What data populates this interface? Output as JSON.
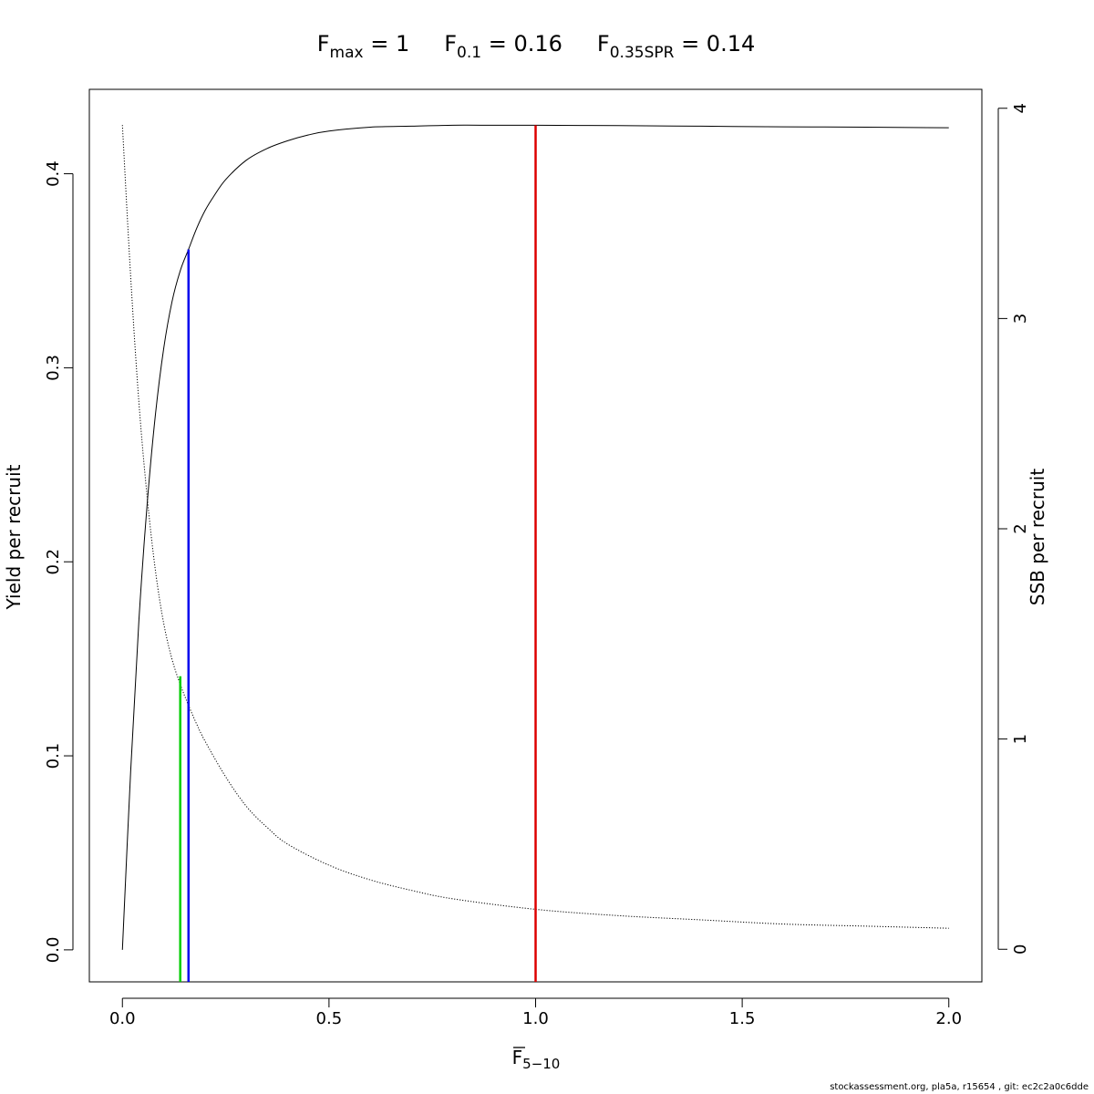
{
  "chart_data": {
    "type": "line",
    "title": "",
    "reference_points": [
      {
        "name_main": "F",
        "name_sub": "max",
        "equals": "=",
        "value": "1",
        "F": 1.0,
        "yield_top": 0.425,
        "color": "#dd0000"
      },
      {
        "name_main": "F",
        "name_sub": "0.1",
        "equals": "=",
        "value": "0.16",
        "F": 0.16,
        "yield_top": 0.361,
        "color": "#0000ee"
      },
      {
        "name_main": "F",
        "name_sub": "0.35SPR",
        "equals": "=",
        "value": "0.14",
        "F": 0.14,
        "yield_top": 0.141,
        "color": "#00cc00"
      }
    ],
    "xlabel": {
      "main": "F",
      "sub": "5−10"
    },
    "ylabel_left": "Yield per recruit",
    "ylabel_right": "SSB per recruit",
    "xlim": [
      -0.08,
      2.08
    ],
    "ylim_left": [
      -0.0165,
      0.4435
    ],
    "ylim_right": [
      -0.155,
      4.09
    ],
    "x_ticks": [
      "0.0",
      "0.5",
      "1.0",
      "1.5",
      "2.0"
    ],
    "y_left_ticks": [
      "0.0",
      "0.1",
      "0.2",
      "0.3",
      "0.4"
    ],
    "y_right_ticks": [
      "0",
      "1",
      "2",
      "3",
      "4"
    ],
    "series": [
      {
        "axis": "left",
        "line": "solid",
        "x": [
          0,
          0.02,
          0.04,
          0.06,
          0.08,
          0.1,
          0.12,
          0.14,
          0.16,
          0.18,
          0.2,
          0.22,
          0.25,
          0.3,
          0.35,
          0.4,
          0.45,
          0.5,
          0.6,
          0.7,
          0.8,
          0.9,
          1.0,
          1.2,
          1.4,
          1.6,
          1.8,
          2.0
        ],
        "y": [
          0,
          0.092,
          0.17,
          0.23,
          0.276,
          0.31,
          0.334,
          0.35,
          0.361,
          0.372,
          0.381,
          0.388,
          0.397,
          0.407,
          0.413,
          0.417,
          0.42,
          0.422,
          0.424,
          0.4245,
          0.425,
          0.425,
          0.425,
          0.4248,
          0.4245,
          0.4242,
          0.424,
          0.4237
        ]
      },
      {
        "axis": "right",
        "line": "dotted",
        "x": [
          0,
          0.02,
          0.04,
          0.06,
          0.08,
          0.1,
          0.12,
          0.14,
          0.16,
          0.18,
          0.2,
          0.25,
          0.3,
          0.35,
          0.4,
          0.5,
          0.6,
          0.7,
          0.8,
          1.0,
          1.2,
          1.4,
          1.6,
          1.8,
          2.0
        ],
        "y": [
          3.92,
          3.2,
          2.6,
          2.15,
          1.8,
          1.55,
          1.38,
          1.26,
          1.16,
          1.07,
          0.99,
          0.82,
          0.68,
          0.58,
          0.5,
          0.4,
          0.33,
          0.28,
          0.24,
          0.19,
          0.16,
          0.14,
          0.12,
          0.11,
          0.1
        ]
      }
    ],
    "grid": false,
    "legend": "none"
  },
  "footer": "stockassessment.org, pla5a, r15654 , git: ec2c2a0c6dde"
}
